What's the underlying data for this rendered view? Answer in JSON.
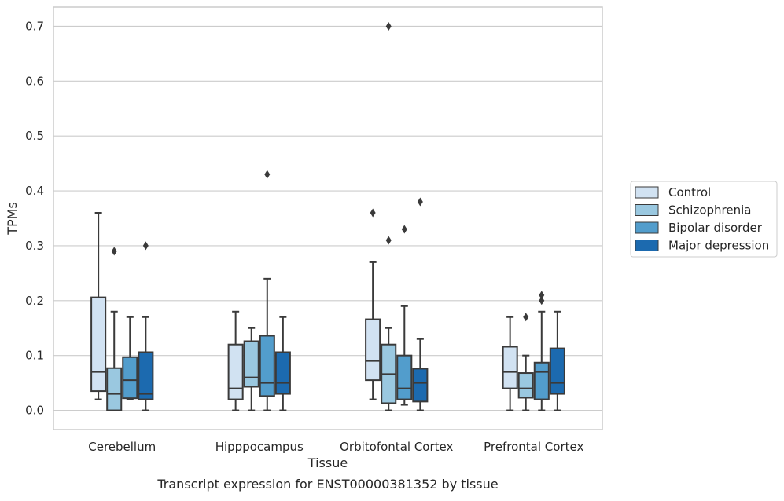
{
  "caption": "Transcript expression for ENST00000381352 by tissue",
  "chart_data": {
    "type": "boxplot",
    "xlabel": "Tissue",
    "ylabel": "TPMs",
    "ylim": [
      -0.035,
      0.735
    ],
    "yticks": [
      "0.0",
      "0.1",
      "0.2",
      "0.3",
      "0.4",
      "0.5",
      "0.6",
      "0.7"
    ],
    "grid": "horizontal",
    "legend_position": "right",
    "categories": [
      "Cerebellum",
      "Hipppocampus",
      "Orbitofontal Cortex",
      "Prefrontal Cortex"
    ],
    "series": [
      {
        "name": "Control",
        "color": "#d1e2f2",
        "boxes": [
          {
            "whislo": 0.02,
            "q1": 0.035,
            "med": 0.07,
            "q3": 0.206,
            "whishi": 0.36,
            "fliers": []
          },
          {
            "whislo": 0.0,
            "q1": 0.02,
            "med": 0.04,
            "q3": 0.12,
            "whishi": 0.18,
            "fliers": []
          },
          {
            "whislo": 0.02,
            "q1": 0.055,
            "med": 0.09,
            "q3": 0.166,
            "whishi": 0.27,
            "fliers": [
              0.36
            ]
          },
          {
            "whislo": 0.0,
            "q1": 0.04,
            "med": 0.07,
            "q3": 0.116,
            "whishi": 0.17,
            "fliers": []
          }
        ]
      },
      {
        "name": "Schizophrenia",
        "color": "#9ac8e0",
        "boxes": [
          {
            "whislo": 0.0,
            "q1": 0.0,
            "med": 0.03,
            "q3": 0.077,
            "whishi": 0.18,
            "fliers": [
              0.29
            ]
          },
          {
            "whislo": 0.0,
            "q1": 0.043,
            "med": 0.06,
            "q3": 0.126,
            "whishi": 0.15,
            "fliers": []
          },
          {
            "whislo": 0.0,
            "q1": 0.013,
            "med": 0.066,
            "q3": 0.12,
            "whishi": 0.15,
            "fliers": [
              0.31,
              0.7
            ]
          },
          {
            "whislo": 0.0,
            "q1": 0.023,
            "med": 0.04,
            "q3": 0.068,
            "whishi": 0.1,
            "fliers": [
              0.17
            ]
          }
        ]
      },
      {
        "name": "Bipolar disorder",
        "color": "#529dcc",
        "boxes": [
          {
            "whislo": 0.02,
            "q1": 0.022,
            "med": 0.055,
            "q3": 0.097,
            "whishi": 0.17,
            "fliers": []
          },
          {
            "whislo": 0.0,
            "q1": 0.026,
            "med": 0.05,
            "q3": 0.136,
            "whishi": 0.24,
            "fliers": [
              0.43
            ]
          },
          {
            "whislo": 0.01,
            "q1": 0.02,
            "med": 0.04,
            "q3": 0.1,
            "whishi": 0.19,
            "fliers": [
              0.33
            ]
          },
          {
            "whislo": 0.0,
            "q1": 0.02,
            "med": 0.07,
            "q3": 0.087,
            "whishi": 0.18,
            "fliers": [
              0.2,
              0.21
            ]
          }
        ]
      },
      {
        "name": "Major depression",
        "color": "#1c6aaf",
        "boxes": [
          {
            "whislo": 0.0,
            "q1": 0.02,
            "med": 0.03,
            "q3": 0.106,
            "whishi": 0.17,
            "fliers": [
              0.3
            ]
          },
          {
            "whislo": 0.0,
            "q1": 0.03,
            "med": 0.05,
            "q3": 0.106,
            "whishi": 0.17,
            "fliers": []
          },
          {
            "whislo": 0.0,
            "q1": 0.016,
            "med": 0.05,
            "q3": 0.076,
            "whishi": 0.13,
            "fliers": [
              0.38
            ]
          },
          {
            "whislo": 0.0,
            "q1": 0.03,
            "med": 0.05,
            "q3": 0.113,
            "whishi": 0.18,
            "fliers": []
          }
        ]
      }
    ]
  }
}
